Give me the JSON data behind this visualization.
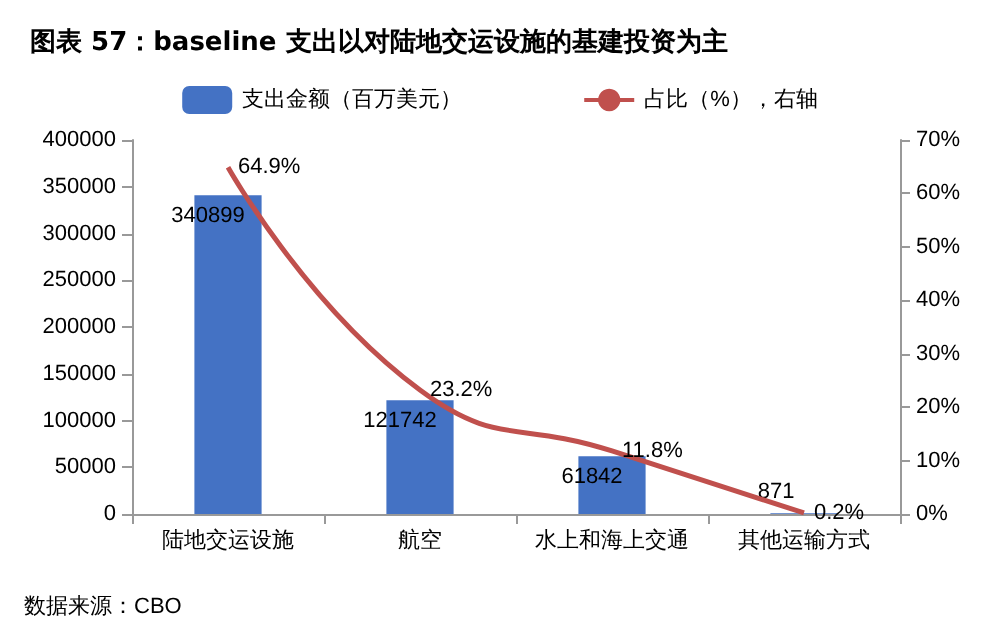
{
  "chart_data": {
    "type": "bar",
    "title": "图表 57：baseline 支出以对陆地交运设施的基建投资为主",
    "annotations": [
      "数据来源：CBO"
    ],
    "categories": [
      "陆地交运设施",
      "航空",
      "水上和海上交通",
      "其他运输方式"
    ],
    "series": [
      {
        "name": "支出金额（百万美元）",
        "color": "#4472c4",
        "values": [
          340899,
          121742,
          61842,
          871
        ],
        "value_labels": [
          "340899",
          "121742",
          "61842",
          "871"
        ]
      },
      {
        "name": "占比（%），右轴",
        "type": "line",
        "axis": "y2",
        "color": "#c0504d",
        "values": [
          64.9,
          23.2,
          11.8,
          0.2
        ],
        "value_labels": [
          "64.9%",
          "23.2%",
          "11.8%",
          "0.2%"
        ]
      }
    ],
    "ylim": [
      0,
      400000
    ],
    "yticks": [
      0,
      50000,
      100000,
      150000,
      200000,
      250000,
      300000,
      350000,
      400000
    ],
    "y2lim": [
      0,
      70
    ],
    "y2ticks": [
      {
        "value": 0,
        "label": "0%"
      },
      {
        "value": 10,
        "label": "10%"
      },
      {
        "value": 20,
        "label": "20%"
      },
      {
        "value": 30,
        "label": "30%"
      },
      {
        "value": 40,
        "label": "40%"
      },
      {
        "value": 50,
        "label": "50%"
      },
      {
        "value": 60,
        "label": "60%"
      },
      {
        "value": 70,
        "label": "70%"
      }
    ],
    "legend": "top",
    "grid": false,
    "marker": "none",
    "line_style": "solid"
  }
}
